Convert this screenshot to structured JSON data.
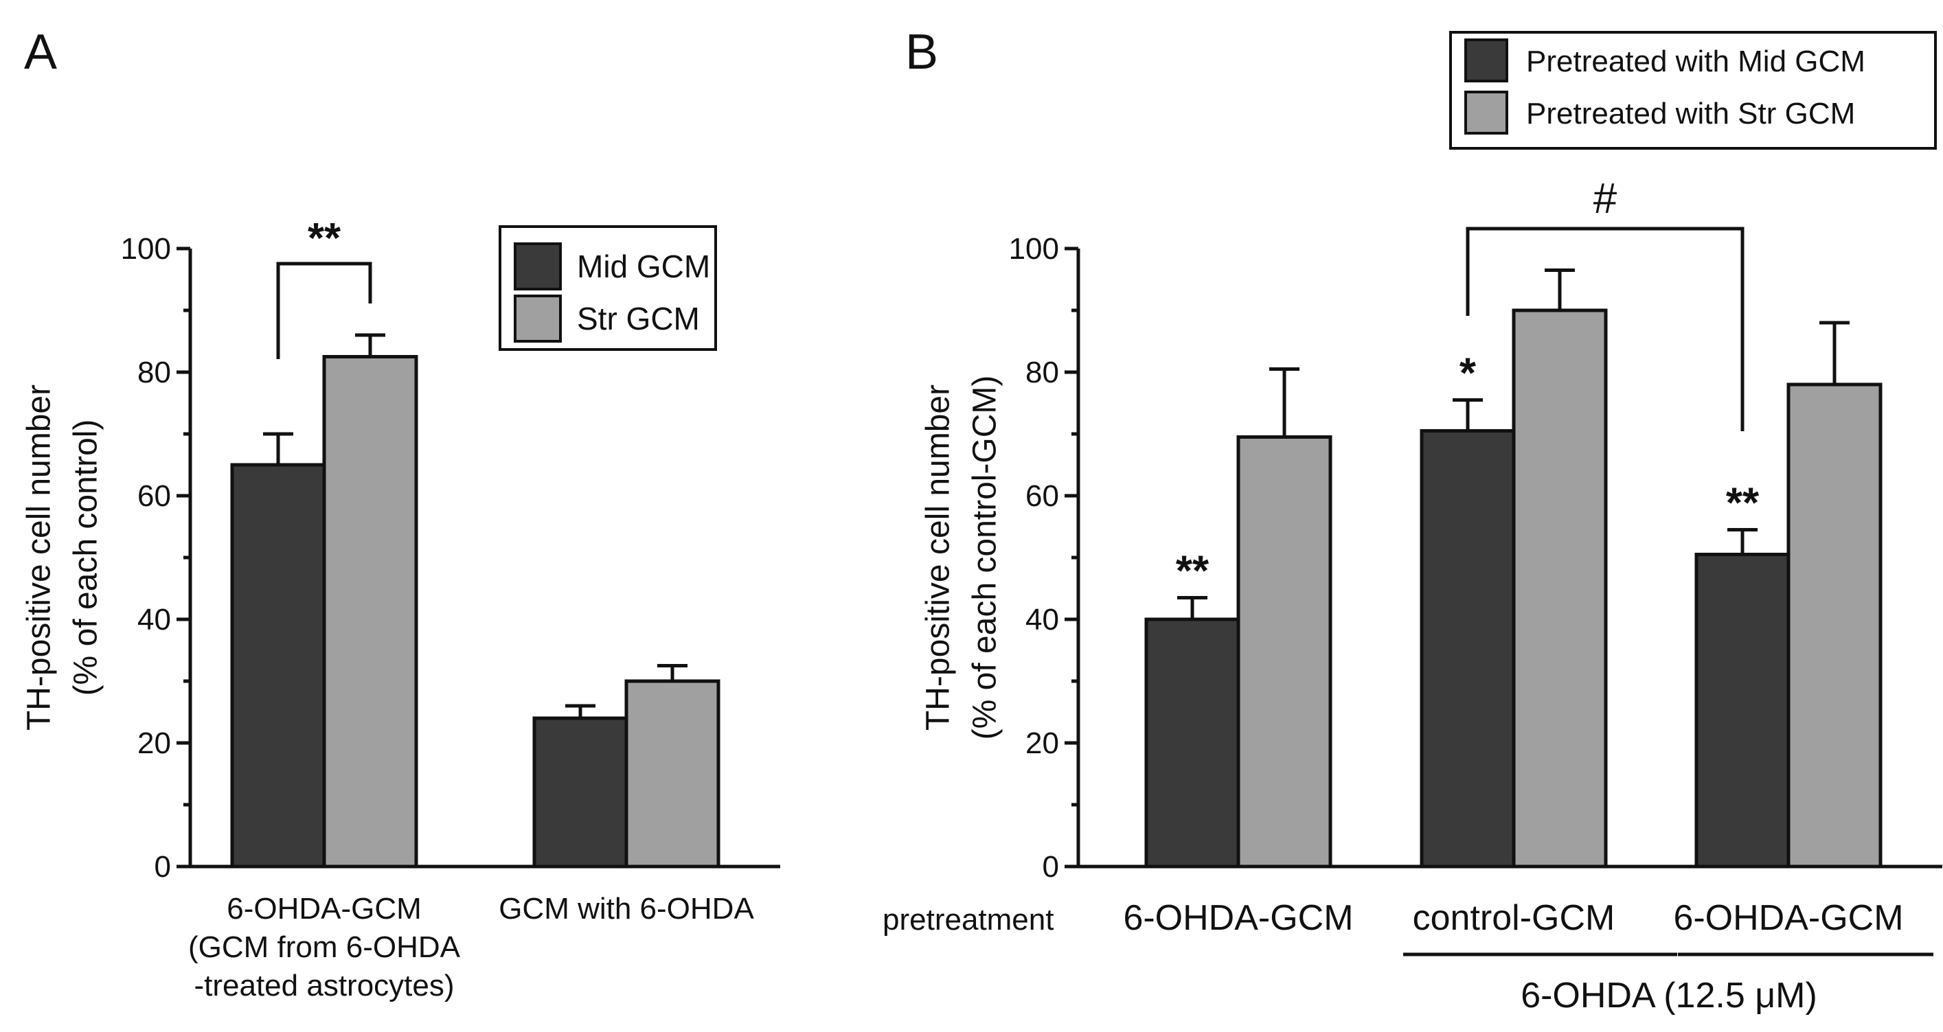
{
  "figure": {
    "colors": {
      "mid": "#3a3a3a",
      "str": "#a0a0a0",
      "ink": "#111111"
    }
  },
  "chart_data": [
    {
      "panel_label": "A",
      "type": "bar",
      "ylabel": [
        "TH-positive cell number",
        "(% of each control)"
      ],
      "ylim": [
        0,
        100
      ],
      "yticks": [
        0,
        20,
        40,
        60,
        80,
        100
      ],
      "grid": false,
      "legend_position": "top-right",
      "categories": [
        [
          "6-OHDA-GCM",
          "(GCM from 6-OHDA",
          "-treated astrocytes)"
        ],
        [
          "GCM with 6-OHDA"
        ]
      ],
      "series": [
        {
          "name": "Mid GCM",
          "values": [
            65,
            24
          ],
          "errors": [
            5,
            2
          ]
        },
        {
          "name": "Str GCM",
          "values": [
            82.5,
            30
          ],
          "errors": [
            3.5,
            2.5
          ]
        }
      ],
      "annotations": [
        {
          "text": "**",
          "type": "bracket",
          "from": "Mid GCM",
          "to": "Str GCM",
          "category": 0
        }
      ]
    },
    {
      "panel_label": "B",
      "type": "bar",
      "ylabel": [
        "TH-positive cell number",
        "(% of each control-GCM)"
      ],
      "ylim": [
        0,
        100
      ],
      "yticks": [
        0,
        20,
        40,
        60,
        80,
        100
      ],
      "grid": false,
      "legend_position": "top-right",
      "row_label": "pretreatment",
      "categories": [
        "6-OHDA-GCM",
        "control-GCM",
        "6-OHDA-GCM"
      ],
      "group_label": "6-OHDA (12.5 μM)",
      "series": [
        {
          "name": "Pretreated with Mid GCM",
          "values": [
            40,
            70.5,
            50.5
          ],
          "errors": [
            3.5,
            5,
            4
          ]
        },
        {
          "name": "Pretreated with Str GCM",
          "values": [
            69.5,
            90,
            78
          ],
          "errors": [
            11,
            6.5,
            10
          ]
        }
      ],
      "annotations": [
        {
          "text": "**",
          "category": 0,
          "series": 0
        },
        {
          "text": "*",
          "category": 1,
          "series": 0
        },
        {
          "text": "**",
          "category": 2,
          "series": 0
        },
        {
          "text": "#",
          "type": "bracket",
          "between": [
            [
              1,
              0
            ],
            [
              2,
              0
            ]
          ]
        }
      ]
    }
  ]
}
